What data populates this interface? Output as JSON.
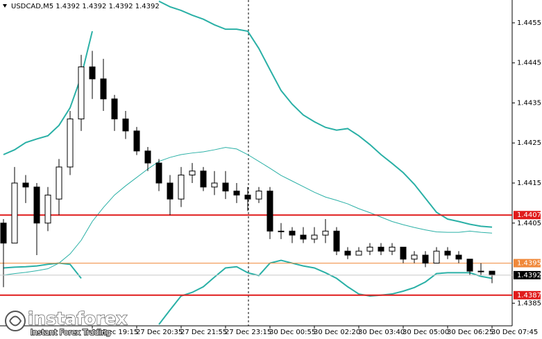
{
  "chart_data": {
    "type": "candlestick",
    "title": "USDCAD,M5  1.4392 1.4392 1.4392 1.4392",
    "categories": [
      null,
      null,
      null,
      null,
      null,
      null,
      null,
      null,
      "27 Dec 19:15",
      null,
      null,
      null,
      "27 Dec 20:35",
      null,
      null,
      null,
      "27 Dec 21:55",
      null,
      null,
      null,
      "27 Dec 23:15",
      null,
      null,
      null,
      "30 Dec 00:55",
      null,
      null,
      null,
      "30 Dec 02:20",
      null,
      null,
      null,
      "30 Dec 03:40",
      null,
      null,
      null,
      "30 Dec 05:00",
      null,
      null,
      null,
      "30 Dec 06:25",
      null,
      null,
      null,
      "30 Dec 07:45"
    ],
    "open": [
      1.4405,
      1.44,
      1.4415,
      1.4414,
      1.4405,
      1.4411,
      1.4419,
      1.4431,
      1.4444,
      1.4441,
      1.4436,
      1.4431,
      1.4428,
      1.4423,
      1.442,
      1.4415,
      1.4411,
      1.4417,
      1.4418,
      1.4414,
      1.4415,
      1.4413,
      1.4412,
      1.4411,
      1.4413,
      1.4403,
      1.4403,
      1.4402,
      1.4401,
      1.4402,
      1.4403,
      1.4398,
      1.4397,
      1.4398,
      1.4399,
      1.4398,
      1.4399,
      1.4396,
      1.4397,
      1.4395,
      1.4398,
      1.4397,
      1.4396,
      1.4393,
      1.4393
    ],
    "high": [
      1.4406,
      1.4419,
      1.4417,
      1.4415,
      1.4414,
      1.4421,
      1.4433,
      1.4447,
      1.4448,
      1.4446,
      1.4437,
      1.4433,
      1.4429,
      1.4424,
      1.4421,
      1.4417,
      1.4419,
      1.442,
      1.4419,
      1.4418,
      1.4418,
      1.4415,
      1.4414,
      1.4414,
      1.4414,
      1.4405,
      1.4404,
      1.4404,
      1.4404,
      1.4406,
      1.4404,
      1.4399,
      1.4399,
      1.44,
      1.44,
      1.44,
      1.4399,
      1.4398,
      1.4398,
      1.4399,
      1.4399,
      1.4398,
      1.4396,
      1.4395,
      1.4393
    ],
    "low": [
      1.4389,
      1.44,
      1.441,
      1.4397,
      1.4403,
      1.4407,
      1.4417,
      1.4428,
      1.4436,
      1.4433,
      1.4428,
      1.4426,
      1.4422,
      1.4418,
      1.4413,
      1.4407,
      1.4409,
      1.4415,
      1.4413,
      1.4412,
      1.4411,
      1.441,
      1.4408,
      1.441,
      1.4401,
      1.4401,
      1.44,
      1.44,
      1.44,
      1.44,
      1.4397,
      1.4396,
      1.4397,
      1.4397,
      1.4397,
      1.4397,
      1.4395,
      1.4395,
      1.4394,
      1.4395,
      1.4396,
      1.4395,
      1.4392,
      1.4392,
      1.439
    ],
    "close": [
      1.44,
      1.4415,
      1.4414,
      1.4405,
      1.4412,
      1.4419,
      1.4431,
      1.4444,
      1.4441,
      1.4436,
      1.4431,
      1.4428,
      1.4423,
      1.442,
      1.4415,
      1.4411,
      1.4417,
      1.4418,
      1.4414,
      1.4415,
      1.4413,
      1.4412,
      1.4411,
      1.4413,
      1.4403,
      1.4403,
      1.4402,
      1.4401,
      1.4402,
      1.4403,
      1.4398,
      1.4397,
      1.4398,
      1.4399,
      1.4398,
      1.4399,
      1.4396,
      1.4397,
      1.4395,
      1.4398,
      1.4397,
      1.4396,
      1.4393,
      1.4393,
      1.4392
    ],
    "bands": {
      "color": "#2ab0a6",
      "upper": [
        1.44221,
        1.44233,
        1.44251,
        1.4426,
        1.44268,
        1.44294,
        1.44338,
        1.44416,
        1.44529,
        null,
        null,
        null,
        null,
        null,
        1.44604,
        1.4459,
        1.44581,
        1.44569,
        1.44559,
        1.44545,
        1.44534,
        1.44534,
        1.44529,
        1.44486,
        1.44433,
        1.44381,
        1.44347,
        1.4432,
        1.44303,
        1.44289,
        1.44282,
        1.44286,
        1.44268,
        1.44246,
        1.44221,
        1.44199,
        1.44176,
        1.44147,
        1.44112,
        1.44077,
        1.4406,
        1.44054,
        1.44047,
        1.44042,
        1.4404
      ],
      "middle": [
        1.4392,
        1.43924,
        1.43927,
        1.43931,
        1.43936,
        1.4395,
        1.43973,
        1.44007,
        1.44054,
        1.44089,
        1.4412,
        1.44143,
        1.44164,
        1.44185,
        1.44204,
        1.44214,
        1.44221,
        1.44225,
        1.44228,
        1.44233,
        1.44239,
        1.44235,
        1.44221,
        1.44204,
        1.44187,
        1.44169,
        1.44155,
        1.44141,
        1.44127,
        1.44115,
        1.44107,
        1.44098,
        1.44086,
        1.44076,
        1.44065,
        1.44054,
        1.44046,
        1.44039,
        1.44033,
        1.44028,
        1.44027,
        1.44027,
        1.4403,
        1.44027,
        1.44025
      ],
      "lower": [
        1.43938,
        1.4394,
        1.43941,
        1.43943,
        1.43947,
        1.4395,
        1.43947,
        1.43912,
        null,
        null,
        null,
        null,
        null,
        null,
        1.43797,
        1.43833,
        1.43868,
        1.43877,
        1.43891,
        1.43915,
        1.43938,
        1.43941,
        1.43926,
        1.43919,
        1.4395,
        1.43957,
        1.4395,
        1.43943,
        1.43938,
        1.43926,
        1.43912,
        1.43891,
        1.43873,
        1.43868,
        1.4387,
        1.43873,
        1.4388,
        1.43889,
        1.43903,
        1.43924,
        1.43926,
        1.43926,
        1.43926,
        1.43917,
        1.43912
      ]
    },
    "levels": [
      {
        "value": 1.4407,
        "color": "#e01b1b"
      },
      {
        "value": 1.4395,
        "color": "#f0883a"
      },
      {
        "value": 1.4387,
        "color": "#e01b1b"
      }
    ],
    "current_price": 1.4392,
    "ylim": [
      1.4379,
      1.44607
    ],
    "yticks": [
      1.4455,
      1.4445,
      1.4435,
      1.4425,
      1.4415,
      1.4405,
      1.4385
    ]
  },
  "watermark": {
    "brand": "instaforex",
    "tagline": "Instant Forex Trading"
  }
}
